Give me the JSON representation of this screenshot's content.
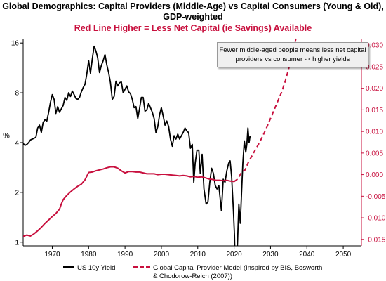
{
  "chart_data": {
    "type": "line",
    "title": "Global Demographics: Capital Providers (Middle-Age) vs Capital Consumers (Young & Old), GDP-weighted",
    "subtitle": "Red Line Higher = Less Net Capital (ie Savings) Available",
    "annotation": "Fewer middle-aged people means less net capital providers vs consumer -> higher yields",
    "xlabel": "",
    "ylabel_left": "%",
    "ylabel_right": "",
    "x_ticks": [
      1970,
      1980,
      1990,
      2000,
      2010,
      2020,
      2030,
      2040,
      2050
    ],
    "xlim": [
      1962,
      2055
    ],
    "y_left": {
      "scale": "log",
      "ticks": [
        "1",
        "2",
        "4",
        "8",
        "16"
      ],
      "lim": [
        0.95,
        17
      ]
    },
    "y_right": {
      "scale": "linear",
      "ticks": [
        "-0.015",
        "-0.010",
        "-0.005",
        "0.000",
        "0.005",
        "0.010",
        "0.015",
        "0.020",
        "0.025",
        "0.030"
      ],
      "lim": [
        -0.0165,
        0.0315
      ]
    },
    "grid": false,
    "legend_position": "bottom",
    "series": [
      {
        "name": "US 10y Yield",
        "axis": "left",
        "color": "#000000",
        "style": "solid",
        "points": [
          [
            1962.0,
            3.95
          ],
          [
            1962.5,
            3.85
          ],
          [
            1963.0,
            3.9
          ],
          [
            1963.5,
            4.0
          ],
          [
            1964.0,
            4.15
          ],
          [
            1964.5,
            4.2
          ],
          [
            1965.0,
            4.25
          ],
          [
            1965.5,
            4.3
          ],
          [
            1966.0,
            4.9
          ],
          [
            1966.5,
            5.1
          ],
          [
            1967.0,
            4.6
          ],
          [
            1967.5,
            5.3
          ],
          [
            1968.0,
            5.5
          ],
          [
            1968.5,
            5.4
          ],
          [
            1969.0,
            6.1
          ],
          [
            1969.5,
            7.0
          ],
          [
            1970.0,
            7.8
          ],
          [
            1970.5,
            7.3
          ],
          [
            1971.0,
            6.0
          ],
          [
            1971.5,
            6.6
          ],
          [
            1972.0,
            6.1
          ],
          [
            1972.5,
            6.4
          ],
          [
            1973.0,
            6.7
          ],
          [
            1973.5,
            7.5
          ],
          [
            1974.0,
            7.2
          ],
          [
            1974.5,
            8.0
          ],
          [
            1975.0,
            7.6
          ],
          [
            1975.5,
            8.2
          ],
          [
            1976.0,
            7.8
          ],
          [
            1976.5,
            7.4
          ],
          [
            1977.0,
            7.3
          ],
          [
            1977.5,
            7.5
          ],
          [
            1978.0,
            8.1
          ],
          [
            1978.5,
            8.6
          ],
          [
            1979.0,
            9.0
          ],
          [
            1979.5,
            10.4
          ],
          [
            1980.0,
            12.5
          ],
          [
            1980.5,
            10.5
          ],
          [
            1981.0,
            12.8
          ],
          [
            1981.5,
            15.3
          ],
          [
            1982.0,
            14.3
          ],
          [
            1982.5,
            13.0
          ],
          [
            1983.0,
            10.6
          ],
          [
            1983.5,
            11.7
          ],
          [
            1984.0,
            12.5
          ],
          [
            1984.5,
            13.6
          ],
          [
            1985.0,
            11.8
          ],
          [
            1985.5,
            10.6
          ],
          [
            1986.0,
            9.2
          ],
          [
            1986.5,
            7.3
          ],
          [
            1987.0,
            7.6
          ],
          [
            1987.5,
            9.4
          ],
          [
            1988.0,
            8.8
          ],
          [
            1988.5,
            9.2
          ],
          [
            1989.0,
            9.3
          ],
          [
            1989.5,
            8.0
          ],
          [
            1990.0,
            8.4
          ],
          [
            1990.5,
            8.8
          ],
          [
            1991.0,
            8.1
          ],
          [
            1991.5,
            7.9
          ],
          [
            1992.0,
            7.3
          ],
          [
            1992.5,
            6.5
          ],
          [
            1993.0,
            6.6
          ],
          [
            1993.5,
            5.6
          ],
          [
            1994.0,
            6.4
          ],
          [
            1994.5,
            7.5
          ],
          [
            1995.0,
            7.5
          ],
          [
            1995.5,
            6.2
          ],
          [
            1996.0,
            6.3
          ],
          [
            1996.5,
            6.9
          ],
          [
            1997.0,
            6.5
          ],
          [
            1997.5,
            6.1
          ],
          [
            1998.0,
            5.6
          ],
          [
            1998.5,
            4.6
          ],
          [
            1999.0,
            5.0
          ],
          [
            1999.5,
            5.9
          ],
          [
            2000.0,
            6.5
          ],
          [
            2000.5,
            5.8
          ],
          [
            2001.0,
            5.1
          ],
          [
            2001.5,
            5.4
          ],
          [
            2002.0,
            5.0
          ],
          [
            2002.5,
            4.2
          ],
          [
            2003.0,
            3.8
          ],
          [
            2003.5,
            4.4
          ],
          [
            2004.0,
            4.2
          ],
          [
            2004.5,
            4.5
          ],
          [
            2005.0,
            4.2
          ],
          [
            2005.5,
            4.4
          ],
          [
            2006.0,
            4.6
          ],
          [
            2006.5,
            4.9
          ],
          [
            2007.0,
            4.7
          ],
          [
            2007.5,
            4.6
          ],
          [
            2008.0,
            3.7
          ],
          [
            2008.5,
            3.9
          ],
          [
            2008.9,
            2.3
          ],
          [
            2009.3,
            3.0
          ],
          [
            2009.8,
            3.6
          ],
          [
            2010.3,
            3.6
          ],
          [
            2010.7,
            2.6
          ],
          [
            2011.2,
            3.4
          ],
          [
            2011.7,
            2.1
          ],
          [
            2012.3,
            1.7
          ],
          [
            2012.8,
            1.75
          ],
          [
            2013.3,
            2.3
          ],
          [
            2013.8,
            2.8
          ],
          [
            2014.3,
            2.6
          ],
          [
            2014.8,
            2.2
          ],
          [
            2015.3,
            2.1
          ],
          [
            2015.8,
            2.2
          ],
          [
            2016.5,
            1.55
          ],
          [
            2017.0,
            2.4
          ],
          [
            2017.5,
            2.3
          ],
          [
            2018.0,
            2.7
          ],
          [
            2018.5,
            3.0
          ],
          [
            2018.9,
            3.1
          ],
          [
            2019.3,
            2.5
          ],
          [
            2019.8,
            1.55
          ],
          [
            2020.1,
            1.1
          ],
          [
            2020.3,
            0.65
          ],
          [
            2020.7,
            0.68
          ],
          [
            2021.0,
            1.1
          ],
          [
            2021.3,
            1.7
          ],
          [
            2021.7,
            1.3
          ],
          [
            2022.0,
            1.9
          ],
          [
            2022.4,
            3.0
          ],
          [
            2022.8,
            4.1
          ],
          [
            2023.2,
            3.5
          ],
          [
            2023.5,
            3.9
          ],
          [
            2023.8,
            4.9
          ],
          [
            2024.1,
            4.0
          ],
          [
            2024.4,
            4.4
          ]
        ]
      },
      {
        "name": "Global Capital Provider Model (Inspired by BIS, Bosworth & Chodorow-Reich (2007))",
        "axis": "right",
        "color": "#c8103e",
        "style": "solid-then-dashed",
        "dashed_from": 2020,
        "points": [
          [
            1962.0,
            -0.0143
          ],
          [
            1963.0,
            -0.014
          ],
          [
            1964.0,
            -0.0142
          ],
          [
            1965.0,
            -0.0137
          ],
          [
            1966.0,
            -0.013
          ],
          [
            1967.0,
            -0.0122
          ],
          [
            1968.0,
            -0.0113
          ],
          [
            1969.0,
            -0.0105
          ],
          [
            1970.0,
            -0.0097
          ],
          [
            1971.0,
            -0.009
          ],
          [
            1972.0,
            -0.008
          ],
          [
            1972.5,
            -0.0068
          ],
          [
            1973.0,
            -0.0058
          ],
          [
            1974.0,
            -0.0048
          ],
          [
            1975.0,
            -0.004
          ],
          [
            1976.0,
            -0.0033
          ],
          [
            1977.0,
            -0.0027
          ],
          [
            1978.0,
            -0.0022
          ],
          [
            1979.0,
            -0.0012
          ],
          [
            1980.0,
            0.0005
          ],
          [
            1981.0,
            0.0006
          ],
          [
            1982.0,
            0.0009
          ],
          [
            1983.0,
            0.0011
          ],
          [
            1984.0,
            0.0013
          ],
          [
            1985.0,
            0.0016
          ],
          [
            1986.0,
            0.0018
          ],
          [
            1987.0,
            0.0018
          ],
          [
            1988.0,
            0.0015
          ],
          [
            1989.0,
            0.0009
          ],
          [
            1990.0,
            0.0004
          ],
          [
            1991.0,
            0.0007
          ],
          [
            1992.0,
            0.0007
          ],
          [
            1993.0,
            0.0006
          ],
          [
            1994.0,
            0.0006
          ],
          [
            1995.0,
            0.0004
          ],
          [
            1996.0,
            0.0002
          ],
          [
            1997.0,
            0.0002
          ],
          [
            1998.0,
            0.0002
          ],
          [
            1999.0,
            0.0
          ],
          [
            2000.0,
            0.0001
          ],
          [
            2001.0,
            0.0001
          ],
          [
            2002.0,
            0.0
          ],
          [
            2003.0,
            -0.0001
          ],
          [
            2004.0,
            -0.0002
          ],
          [
            2005.0,
            -0.0003
          ],
          [
            2006.0,
            -0.0002
          ],
          [
            2007.0,
            -0.0003
          ],
          [
            2008.0,
            -0.0005
          ],
          [
            2009.0,
            -0.0004
          ],
          [
            2010.0,
            -0.0006
          ],
          [
            2011.0,
            -0.0005
          ],
          [
            2012.0,
            -0.0007
          ],
          [
            2013.0,
            -0.001
          ],
          [
            2014.0,
            -0.0011
          ],
          [
            2015.0,
            -0.0013
          ],
          [
            2016.0,
            -0.0013
          ],
          [
            2017.0,
            -0.0014
          ],
          [
            2018.0,
            -0.0013
          ],
          [
            2019.0,
            -0.0015
          ],
          [
            2020.0,
            -0.0016
          ],
          [
            2021.0,
            -0.001
          ],
          [
            2022.0,
            0.0005
          ],
          [
            2023.0,
            0.0011
          ],
          [
            2024.0,
            0.003
          ],
          [
            2025.0,
            0.0045
          ],
          [
            2026.0,
            0.006
          ],
          [
            2027.0,
            0.0075
          ],
          [
            2028.0,
            0.0092
          ],
          [
            2029.0,
            0.011
          ],
          [
            2030.0,
            0.013
          ],
          [
            2031.0,
            0.015
          ],
          [
            2032.0,
            0.017
          ],
          [
            2033.0,
            0.019
          ],
          [
            2034.0,
            0.0215
          ],
          [
            2035.0,
            0.0245
          ],
          [
            2036.0,
            0.028
          ],
          [
            2037.0,
            0.0315
          ]
        ]
      }
    ]
  },
  "legend": {
    "items": [
      {
        "label": "US 10y Yield",
        "color": "#000000",
        "style": "solid"
      },
      {
        "label": "Global Capital Provider Model (Inspired by BIS, Bosworth & Chodorow-Reich (2007))",
        "color": "#c8103e",
        "style": "dashed"
      }
    ]
  }
}
